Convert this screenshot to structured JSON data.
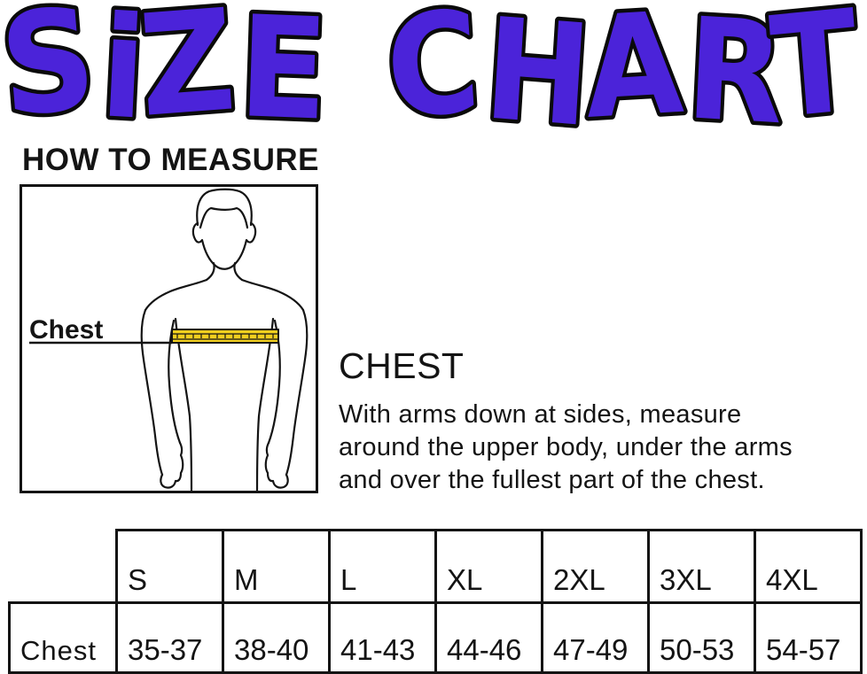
{
  "title": {
    "word1": "SiZE",
    "word2": "CHART",
    "fill_color": "#4B23D9",
    "outline_color": "#0a0a0a"
  },
  "section_how_to_measure": {
    "heading": "HOW TO MEASURE"
  },
  "diagram": {
    "label": "Chest",
    "tape_color": "#F2CF1E"
  },
  "instructions": {
    "heading": "CHEST",
    "lines": [
      "With arms down at sides, measure",
      "around the upper body, under the arms",
      "and over the fullest part of the chest."
    ]
  },
  "size_table": {
    "row_label": "Chest",
    "columns": [
      "S",
      "M",
      "L",
      "XL",
      "2XL",
      "3XL",
      "4XL"
    ],
    "values": [
      "35-37",
      "38-40",
      "41-43",
      "44-46",
      "47-49",
      "50-53",
      "54-57"
    ]
  }
}
